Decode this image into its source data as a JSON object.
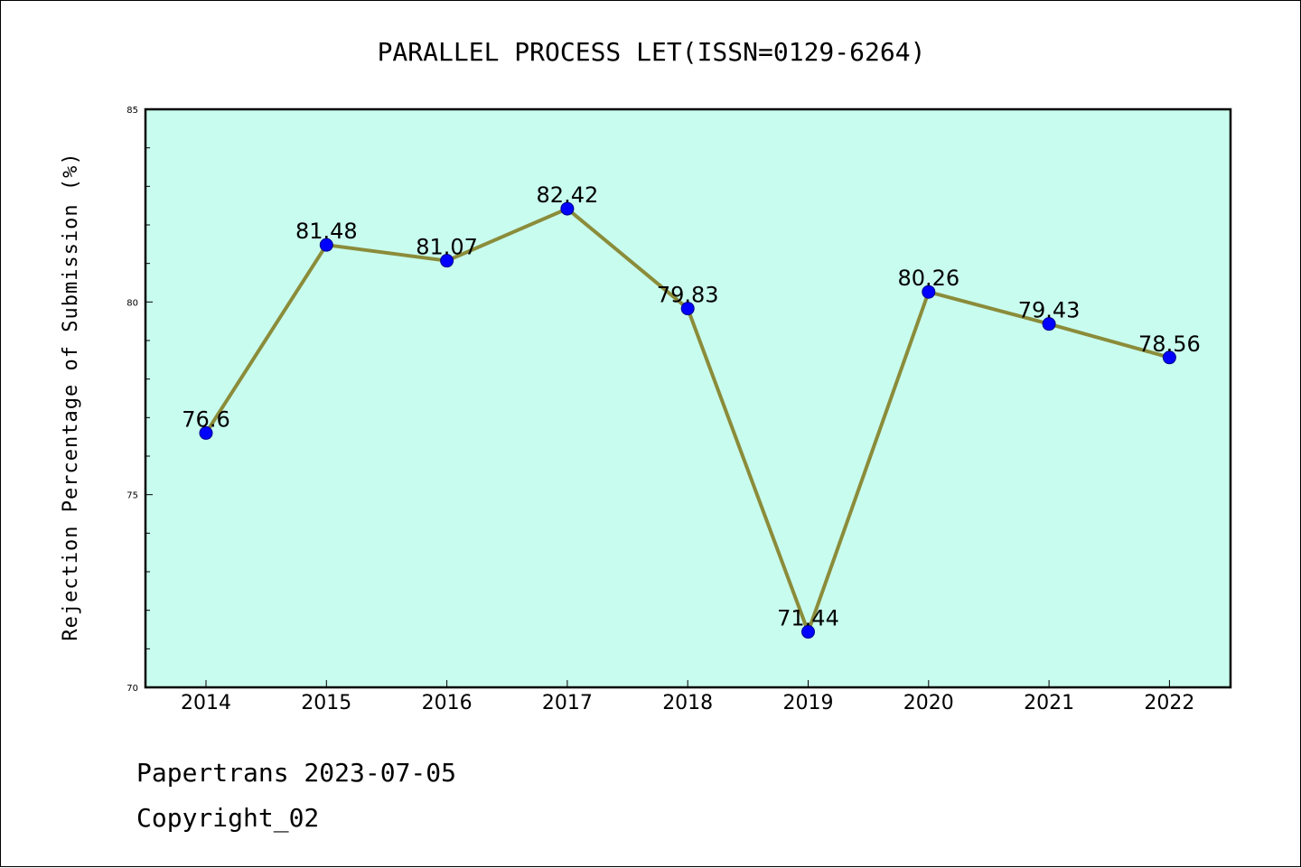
{
  "chart_data": {
    "type": "line",
    "title": "PARALLEL PROCESS LET(ISSN=0129-6264)",
    "ylabel": "Rejection Percentage of Submission (%)",
    "xlabel": "",
    "categories": [
      "2014",
      "2015",
      "2016",
      "2017",
      "2018",
      "2019",
      "2020",
      "2021",
      "2022"
    ],
    "series": [
      {
        "values": [
          76.6,
          81.48,
          81.07,
          82.42,
          79.83,
          71.44,
          80.26,
          79.43,
          78.56
        ],
        "labels": [
          "76.6",
          "81.48",
          "81.07",
          "82.42",
          "79.83",
          "71.44",
          "80.26",
          "79.43",
          "78.56"
        ]
      }
    ],
    "ylim": [
      70,
      85
    ],
    "yticks": [
      "70",
      "75",
      "80",
      "85"
    ],
    "grid": false,
    "legend": "none",
    "colors": {
      "plot_background": "#c8fcee",
      "line": "#8b8c3a",
      "marker": "#0000ff"
    }
  },
  "footer": {
    "line1": "Papertrans 2023-07-05",
    "line2": "Copyright_02"
  }
}
